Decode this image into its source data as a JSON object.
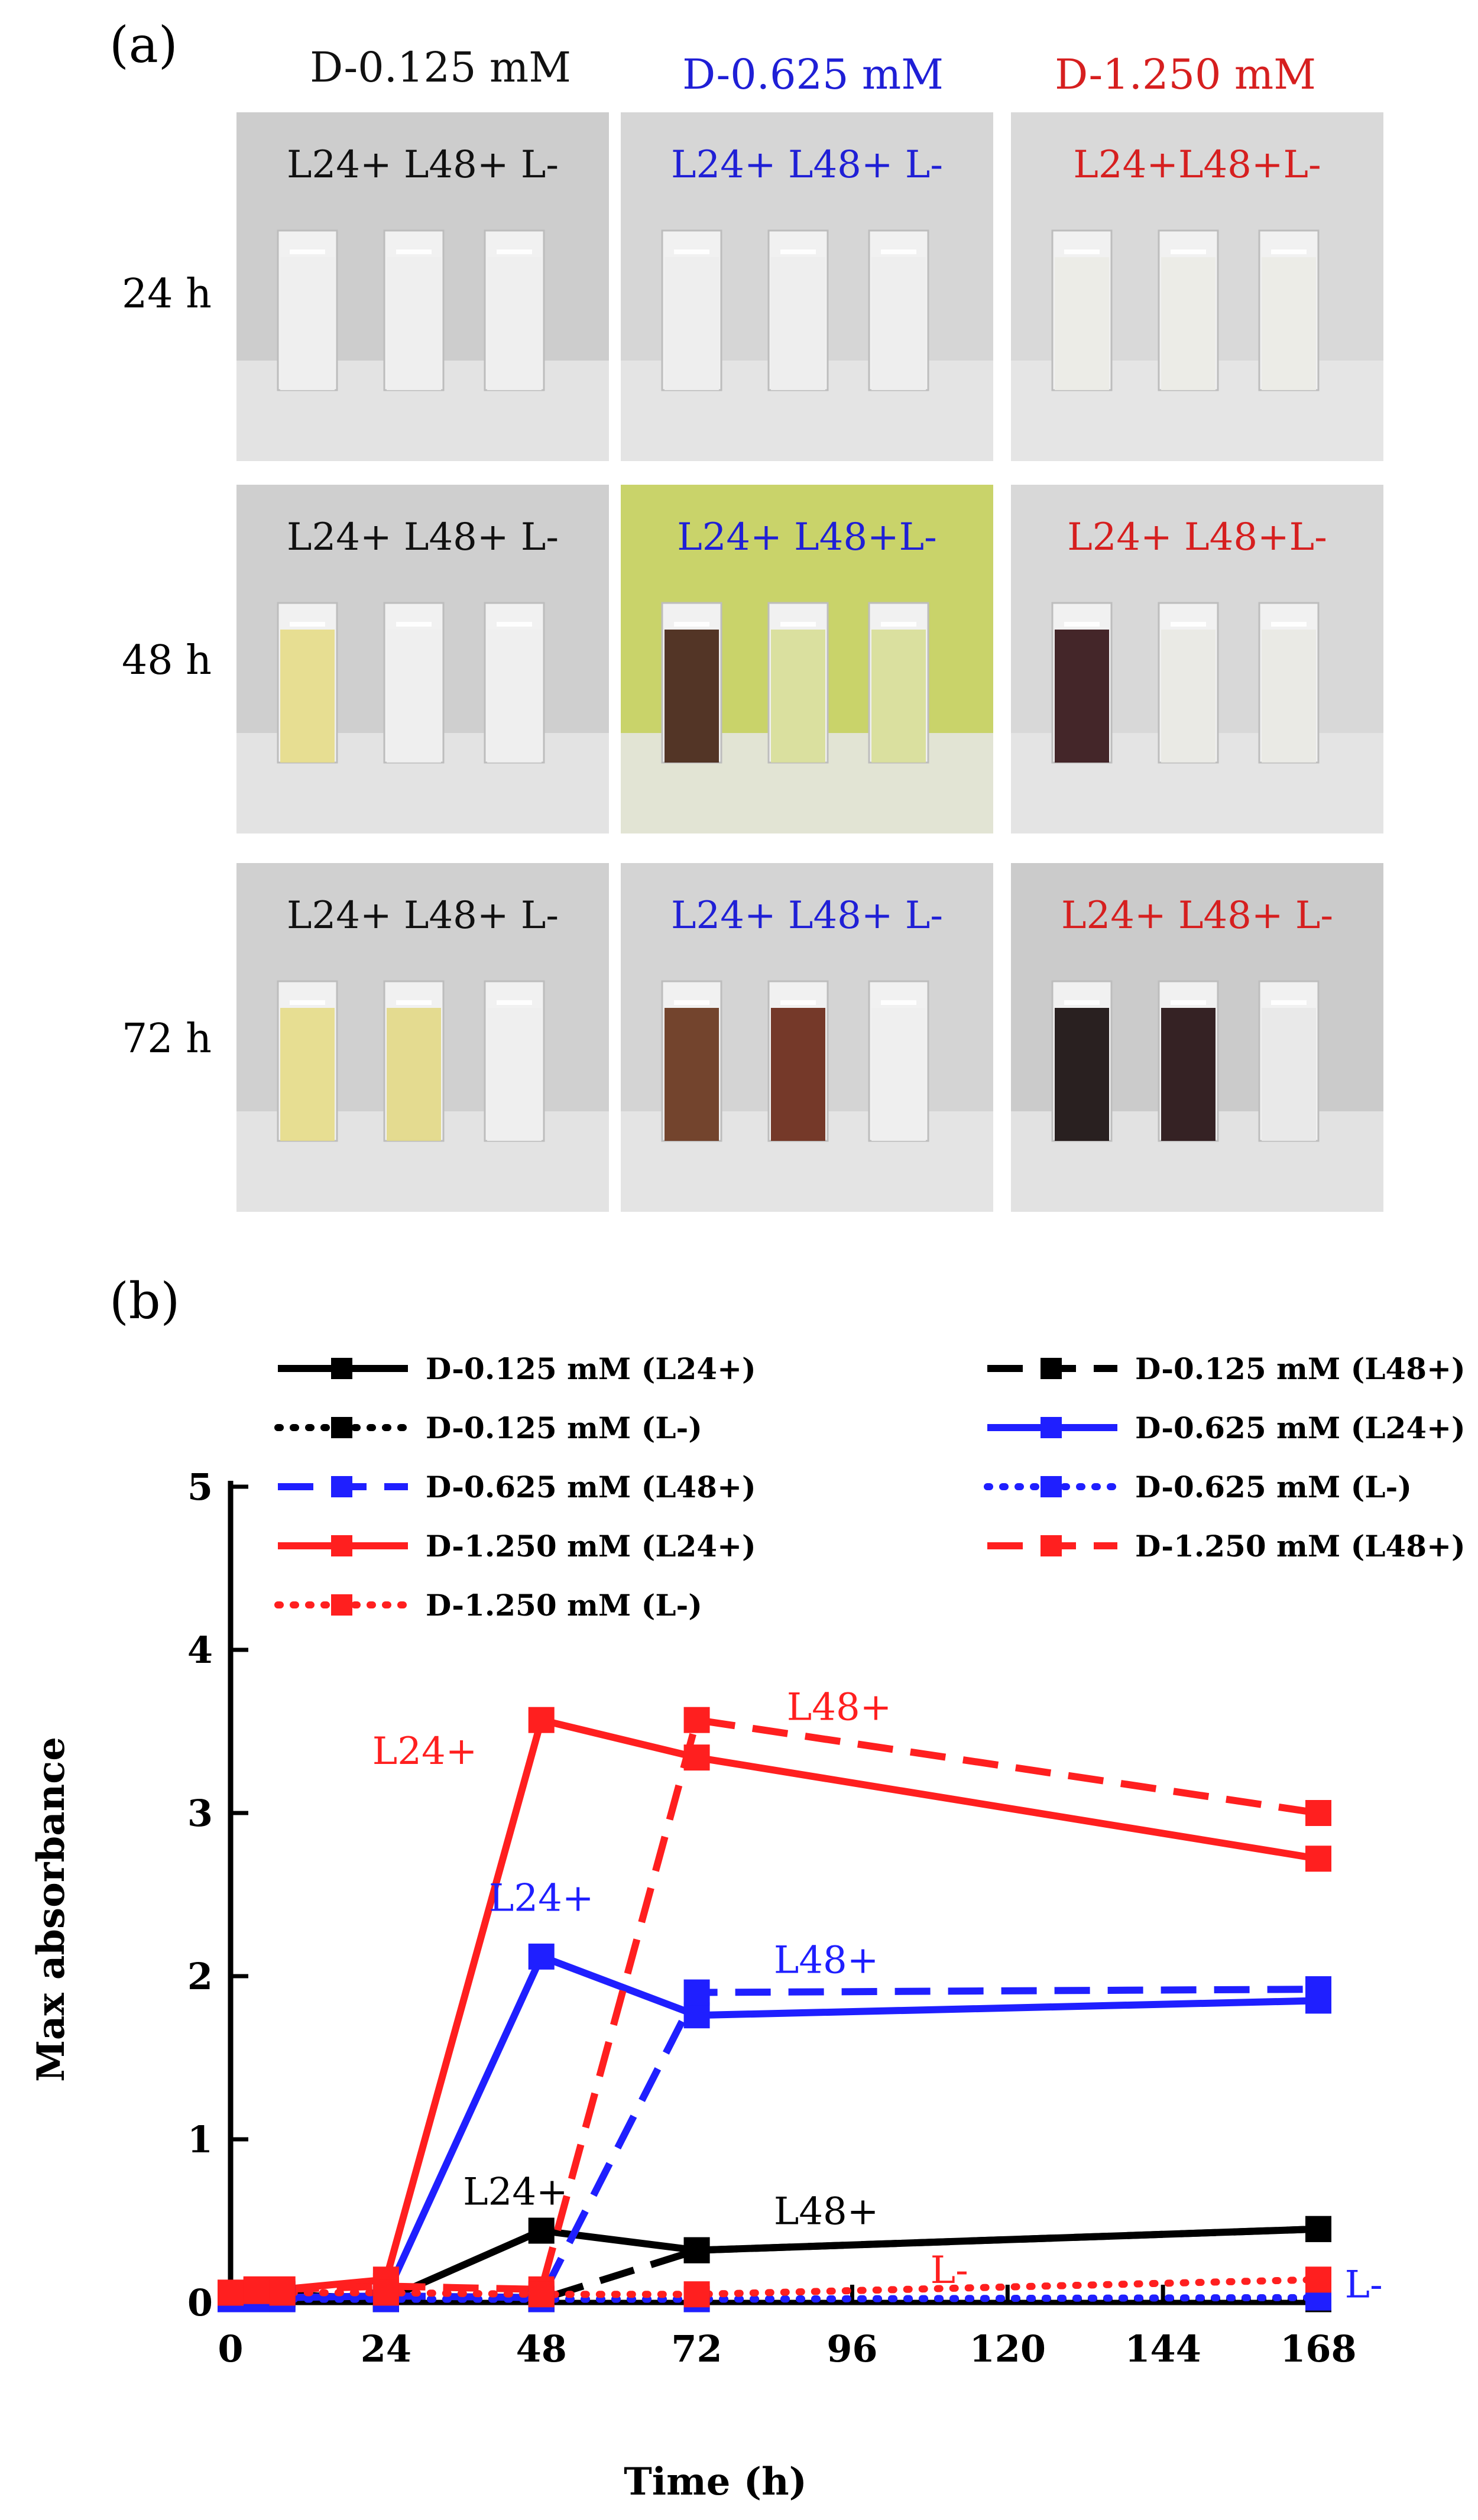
{
  "panel_a": {
    "label": "(a)",
    "columns": [
      {
        "title": "D-0.125 mM",
        "color": "#111111"
      },
      {
        "title": "D-0.625 mM",
        "color": "#1f1fd6"
      },
      {
        "title": "D-1.250 mM",
        "color": "#d61f1f"
      }
    ],
    "rows": [
      {
        "label": "24 h"
      },
      {
        "label": "48 h"
      },
      {
        "label": "72 h"
      }
    ],
    "cell_labels": [
      [
        "L24+ L48+ L-",
        "L24+ L48+ L-",
        "L24+L48+L-"
      ],
      [
        "L24+ L48+ L-",
        "L24+ L48+L-",
        "L24+ L48+L-"
      ],
      [
        "L24+ L48+ L-",
        "L24+ L48+  L-",
        "L24+ L48+  L-"
      ]
    ],
    "cell_backgrounds": [
      [
        "#cdcdcd",
        "#d6d6d6",
        "#d9d9d9"
      ],
      [
        "#cfcfcf",
        "#c9d36a",
        "#d8d8d8"
      ],
      [
        "#d0d0d0",
        "#d4d4d4",
        "#cbcbcb"
      ]
    ],
    "vial_colors": [
      [
        [
          "#eeeeee",
          "#eeeeee",
          "#eeeeee"
        ],
        [
          "#ededed",
          "#ededed",
          "#ededed"
        ],
        [
          "#ebebe6",
          "#ebebe6",
          "#ebebe6"
        ]
      ],
      [
        [
          "#e6dc8c",
          "#eeeeee",
          "#eeeeee"
        ],
        [
          "#4a2a1a",
          "#d8de9a",
          "#d8de9a"
        ],
        [
          "#3a1a1e",
          "#e9e9e4",
          "#e9e9e4"
        ]
      ],
      [
        [
          "#e6dc8c",
          "#e3d98a",
          "#eeeeee"
        ],
        [
          "#6b3a22",
          "#6e2e1e",
          "#eeeeee"
        ],
        [
          "#1e1414",
          "#2a1618",
          "#e8e8e8"
        ]
      ]
    ]
  },
  "chart_data": {
    "type": "line",
    "panel_label": "(b)",
    "title": "",
    "xlabel": "Time (h)",
    "ylabel": "Max absorbance",
    "xlim": [
      0,
      168
    ],
    "ylim": [
      0,
      5
    ],
    "xticks": [
      0,
      24,
      48,
      72,
      96,
      120,
      144,
      168
    ],
    "yticks": [
      0,
      1,
      2,
      3,
      4,
      5
    ],
    "series": [
      {
        "name": "D-0.125 mM (L24+)",
        "color": "#000000",
        "dash": "solid",
        "x": [
          0,
          4,
          8,
          24,
          48,
          72,
          168
        ],
        "y": [
          0.05,
          0.05,
          0.05,
          0.02,
          0.44,
          0.32,
          0.45
        ]
      },
      {
        "name": "D-0.125 mM (L48+)",
        "color": "#000000",
        "dash": "dashed",
        "x": [
          0,
          4,
          8,
          24,
          48,
          72,
          168
        ],
        "y": [
          0.05,
          0.05,
          0.05,
          0.02,
          0.02,
          0.32,
          0.45
        ]
      },
      {
        "name": "D-0.125 mM (L-)",
        "color": "#000000",
        "dash": "dotted",
        "x": [
          0,
          4,
          8,
          24,
          48,
          72,
          168
        ],
        "y": [
          0.02,
          0.02,
          0.02,
          0.02,
          0.02,
          0.02,
          0.02
        ]
      },
      {
        "name": "D-0.625 mM (L24+)",
        "color": "#1f1fff",
        "dash": "solid",
        "x": [
          0,
          4,
          8,
          24,
          48,
          72,
          168
        ],
        "y": [
          0.03,
          0.03,
          0.03,
          0.04,
          2.12,
          1.76,
          1.85
        ]
      },
      {
        "name": "D-0.625 mM (L48+)",
        "color": "#1f1fff",
        "dash": "dashed",
        "x": [
          0,
          4,
          8,
          24,
          48,
          72,
          168
        ],
        "y": [
          0.03,
          0.03,
          0.03,
          0.04,
          0.03,
          1.9,
          1.92
        ]
      },
      {
        "name": "D-0.625 mM (L-)",
        "color": "#1f1fff",
        "dash": "dotted",
        "x": [
          0,
          4,
          8,
          24,
          48,
          72,
          168
        ],
        "y": [
          0.02,
          0.02,
          0.02,
          0.02,
          0.02,
          0.02,
          0.03
        ]
      },
      {
        "name": "D-1.250 mM (L24+)",
        "color": "#ff1f1f",
        "dash": "solid",
        "x": [
          0,
          4,
          8,
          24,
          48,
          72,
          168
        ],
        "y": [
          0.06,
          0.08,
          0.08,
          0.14,
          3.57,
          3.34,
          2.72
        ]
      },
      {
        "name": "D-1.250 mM (L48+)",
        "color": "#ff1f1f",
        "dash": "dashed",
        "x": [
          0,
          4,
          8,
          24,
          48,
          72,
          168
        ],
        "y": [
          0.06,
          0.08,
          0.08,
          0.1,
          0.08,
          3.57,
          3.0
        ]
      },
      {
        "name": "D-1.250 mM (L-)",
        "color": "#ff1f1f",
        "dash": "dotted",
        "x": [
          0,
          4,
          8,
          24,
          48,
          72,
          168
        ],
        "y": [
          0.06,
          0.07,
          0.06,
          0.06,
          0.05,
          0.05,
          0.14
        ]
      }
    ],
    "annotations": [
      {
        "text": "L24+",
        "x": 30,
        "y": 3.3,
        "color": "#ff1f1f"
      },
      {
        "text": "L48+",
        "x": 94,
        "y": 3.57,
        "color": "#ff1f1f"
      },
      {
        "text": "L24+",
        "x": 48,
        "y": 2.4,
        "color": "#1f1fff"
      },
      {
        "text": "L48+",
        "x": 92,
        "y": 2.02,
        "color": "#1f1fff"
      },
      {
        "text": "L24+",
        "x": 44,
        "y": 0.6,
        "color": "#000000"
      },
      {
        "text": "L48+",
        "x": 92,
        "y": 0.48,
        "color": "#000000"
      },
      {
        "text": "L-",
        "x": 111,
        "y": 0.12,
        "color": "#ff1f1f"
      },
      {
        "text": "L-",
        "x": 175,
        "y": 0.03,
        "color": "#1f1fff"
      }
    ],
    "legend_position": "top"
  }
}
